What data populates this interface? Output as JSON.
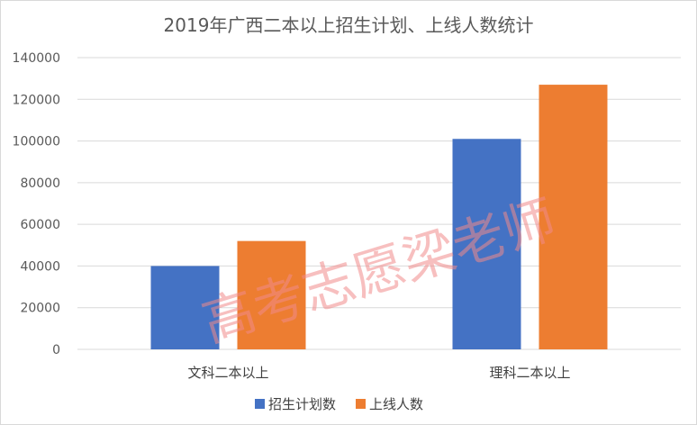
{
  "chart_data": {
    "type": "bar",
    "title": "2019年广西二本以上招生计划、上线人数统计",
    "categories": [
      "文科二本以上",
      "理科二本以上"
    ],
    "series": [
      {
        "name": "招生计划数",
        "values": [
          40000,
          101000
        ],
        "color": "#4472C4"
      },
      {
        "name": "上线人数",
        "values": [
          52000,
          127000
        ],
        "color": "#ED7D31"
      }
    ],
    "ylim": [
      0,
      140000
    ],
    "yticks": [
      "0",
      "20000",
      "40000",
      "60000",
      "80000",
      "100000",
      "120000",
      "140000"
    ],
    "xlabel": "",
    "ylabel": "",
    "grid": true,
    "legend_position": "bottom"
  },
  "watermark": "高考志愿梁老师"
}
